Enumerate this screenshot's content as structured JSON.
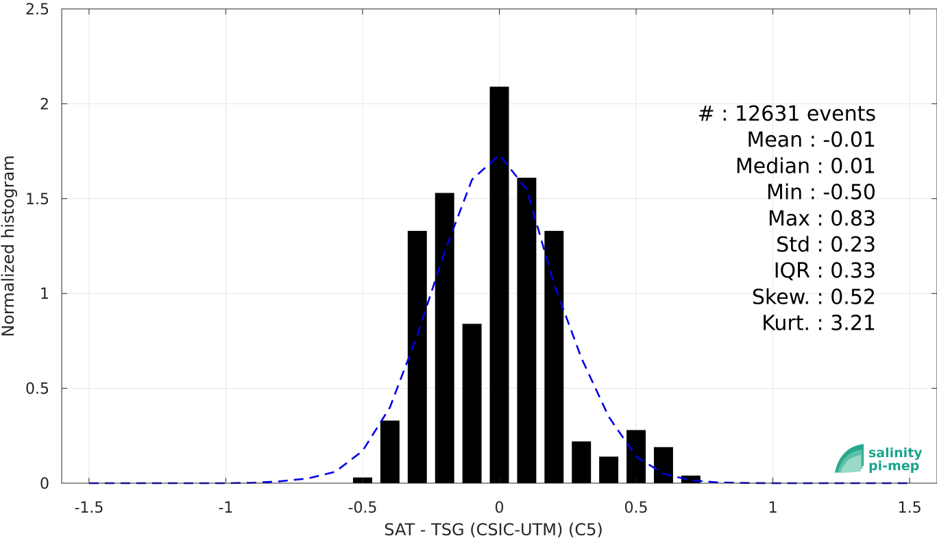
{
  "chart_data": {
    "type": "bar",
    "xlabel": "SAT - TSG (CSIC-UTM) (C5)",
    "ylabel": "Normalized histogram",
    "xlim": [
      -1.6,
      1.6
    ],
    "ylim": [
      0,
      2.5
    ],
    "grid": true,
    "xticks": [
      -1.5,
      -1,
      -0.5,
      0,
      0.5,
      1,
      1.5
    ],
    "xtick_labels": [
      "-1.5",
      "-1",
      "-0.5",
      "0",
      "0.5",
      "1",
      "1.5"
    ],
    "yticks": [
      0,
      0.5,
      1,
      1.5,
      2,
      2.5
    ],
    "ytick_labels": [
      "0",
      "0.5",
      "1",
      "1.5",
      "2",
      "2.5"
    ],
    "bar_width": 0.07,
    "bars": {
      "centers": [
        -0.5,
        -0.4,
        -0.3,
        -0.2,
        -0.1,
        0.0,
        0.1,
        0.2,
        0.3,
        0.4,
        0.5,
        0.6,
        0.7
      ],
      "values": [
        0.03,
        0.33,
        1.33,
        1.53,
        0.84,
        2.09,
        1.61,
        1.33,
        0.22,
        0.14,
        0.28,
        0.19,
        0.04
      ],
      "color": "#000000"
    },
    "fit_curve": {
      "style": "dashed",
      "color": "#0000e6",
      "x": [
        -1.5,
        -1.4,
        -1.3,
        -1.2,
        -1.1,
        -1.0,
        -0.9,
        -0.8,
        -0.7,
        -0.6,
        -0.5,
        -0.4,
        -0.3,
        -0.2,
        -0.1,
        0.0,
        0.1,
        0.2,
        0.3,
        0.4,
        0.5,
        0.6,
        0.7,
        0.8,
        0.9,
        1.0,
        1.1,
        1.2,
        1.3,
        1.4,
        1.5
      ],
      "y": [
        0.0,
        0.0,
        0.0,
        0.0,
        0.0,
        0.0,
        0.002,
        0.01,
        0.025,
        0.06,
        0.17,
        0.4,
        0.78,
        1.22,
        1.6,
        1.73,
        1.55,
        1.05,
        0.66,
        0.35,
        0.14,
        0.05,
        0.015,
        0.004,
        0.001,
        0.0,
        0.0,
        0.0,
        0.0,
        0.0,
        0.0
      ]
    },
    "stats": [
      "#  : 12631 events",
      "Mean : -0.01",
      "Median : 0.01",
      "Min : -0.50",
      "Max : 0.83",
      "Std : 0.23",
      "IQR : 0.33",
      "Skew. : 0.52",
      "Kurt. : 3.21"
    ],
    "logo": {
      "line1": "salinity",
      "line2": "pi-mep",
      "color": "#1aa48c"
    }
  }
}
